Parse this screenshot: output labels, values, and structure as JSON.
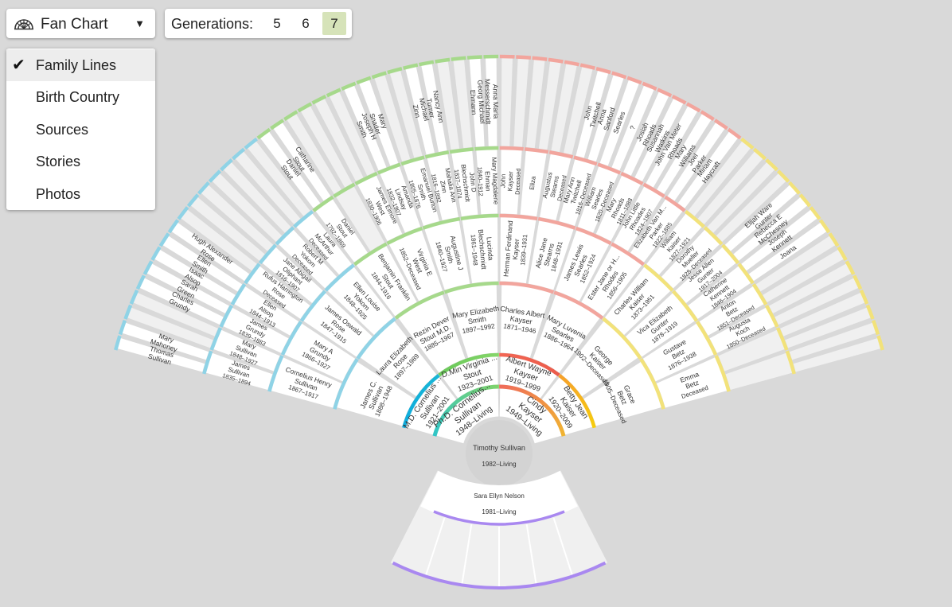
{
  "toolbar": {
    "chart_type_label": "Fan Chart",
    "generations_label": "Generations:",
    "generation_options": [
      "5",
      "6",
      "7"
    ],
    "active_generation": "7"
  },
  "view_menu": {
    "items": [
      "Family Lines",
      "Birth Country",
      "Sources",
      "Stories",
      "Photos"
    ],
    "selected": "Family Lines"
  },
  "colors": {
    "paternal_paternal": "#a6d98b",
    "paternal_maternal": "#8fd3e6",
    "maternal_paternal": "#f2a59d",
    "maternal_maternal": "#f2e27a",
    "spouse": "#a988f0",
    "empty": "#f0f0f0",
    "box": "#ffffff",
    "root": "#d3d3d3"
  },
  "root_person": {
    "name": "Timothy Sullivan",
    "dates": "1982–Living"
  },
  "spouse_person": {
    "name": "Sara Ellyn Nelson",
    "dates": "1981–Living"
  },
  "people": [
    {
      "name": "Ph.D. Cornelius...\nSullivan",
      "dates": "1948–Living",
      "ring": 1,
      "slot": 0
    },
    {
      "name": "Cindy\nKayser",
      "dates": "1949–Living",
      "ring": 1,
      "slot": 1
    },
    {
      "name": "M.D. Cornelius ...\nSullivan",
      "dates": "1921–2001",
      "ring": 2,
      "slot": 0
    },
    {
      "name": "D.Min Virginia ...\nStout",
      "dates": "1923–2001",
      "ring": 2,
      "slot": 1
    },
    {
      "name": "Albert Wayne\nKayser",
      "dates": "1919–1999",
      "ring": 2,
      "slot": 2
    },
    {
      "name": "Betty Jean\nKaiser",
      "dates": "1920–2009",
      "ring": 2,
      "slot": 3
    },
    {
      "name": "James C.\nSullivan",
      "dates": "1888–1948",
      "ring": 3,
      "slot": 0
    },
    {
      "name": "Laura Elizabeth\nRose",
      "dates": "1897–1989",
      "ring": 3,
      "slot": 1
    },
    {
      "name": "Rezin Dever\nStout M.D.",
      "dates": "1885–1967",
      "ring": 3,
      "slot": 2
    },
    {
      "name": "Mary Elizabeth\nSmith",
      "dates": "1897–1992",
      "ring": 3,
      "slot": 3
    },
    {
      "name": "Charles Albert\nKayser",
      "dates": "1871–1946",
      "ring": 3,
      "slot": 4
    },
    {
      "name": "Mary Luvenia\nSearles",
      "dates": "1886–1964",
      "ring": 3,
      "slot": 5
    },
    {
      "name": "George\nKaiser",
      "dates": "1902–Deceased",
      "ring": 3,
      "slot": 6
    },
    {
      "name": "Grace\nBetz",
      "dates": "1905–Deceased",
      "ring": 3,
      "slot": 7
    },
    {
      "name": "Cornelius Henry\nSullivan",
      "dates": "1867–1917",
      "ring": 4,
      "slot": 0
    },
    {
      "name": "Mary A\nGrundy",
      "dates": "1866–1927",
      "ring": 4,
      "slot": 1
    },
    {
      "name": "James Oswald\nRose",
      "dates": "1847–1915",
      "ring": 4,
      "slot": 2
    },
    {
      "name": "Ellen Louise\nYokom",
      "dates": "1848–1925",
      "ring": 4,
      "slot": 3
    },
    {
      "name": "Benjamin Franklin\nStout",
      "dates": "1844–1916",
      "ring": 4,
      "slot": 4
    },
    {
      "name": "Virginia E\nWest",
      "dates": "1852–Deceased",
      "ring": 4,
      "slot": 5
    },
    {
      "name": "Augustine J\nSmith",
      "dates": "1840–1927",
      "ring": 4,
      "slot": 6
    },
    {
      "name": "Lucinda\nBlechschmidt",
      "dates": "1861–1948",
      "ring": 4,
      "slot": 7
    },
    {
      "name": "Herman Ferdinand\nKayser",
      "dates": "1839–1931",
      "ring": 4,
      "slot": 8
    },
    {
      "name": "Alice Jane\nStearns",
      "dates": "1848–1931",
      "ring": 4,
      "slot": 9
    },
    {
      "name": "James Lewis\nSearles",
      "dates": "1852–1924",
      "ring": 4,
      "slot": 10
    },
    {
      "name": "Ester Jane or H...\nRhodes",
      "dates": "1856–1905",
      "ring": 4,
      "slot": 11
    },
    {
      "name": "Charles William\nKaiser",
      "dates": "1873–1951",
      "ring": 4,
      "slot": 12
    },
    {
      "name": "Vica Elizabeth\nGunter",
      "dates": "1878–1919",
      "ring": 4,
      "slot": 13
    },
    {
      "name": "Gustave\nBetz",
      "dates": "1876–1938",
      "ring": 4,
      "slot": 14
    },
    {
      "name": "Emma\nBetz",
      "dates": "Deceased",
      "ring": 4,
      "slot": 15
    },
    {
      "name": "James\nSullivan",
      "dates": "1835–1894",
      "ring": 5,
      "slot": 0
    },
    {
      "name": "Mary\nSullivan",
      "dates": "1848–1927",
      "ring": 5,
      "slot": 1
    },
    {
      "name": "James\nGrundy",
      "dates": "1839–1883",
      "ring": 5,
      "slot": 2
    },
    {
      "name": "Ellen\nAlsop",
      "dates": "1844–1913",
      "ring": 5,
      "slot": 3
    },
    {
      "name": "Rufus Harrington\nRose",
      "dates": "Deceased",
      "ring": 5,
      "slot": 4
    },
    {
      "name": "Jane Abigail\nOliphant",
      "dates": "1816–1907",
      "ring": 5,
      "slot": 5
    },
    {
      "name": "Robert M\nYokom",
      "dates": "Deceased",
      "ring": 5,
      "slot": 6
    },
    {
      "name": "Laura\nMcArthur",
      "dates": "Deceased",
      "ring": 5,
      "slot": 7
    },
    {
      "name": "Daniel\nStout",
      "dates": "1792–1869",
      "ring": 5,
      "slot": 8
    },
    {
      "name": "James Elmore\nWest",
      "dates": "1830–1906",
      "ring": 5,
      "slot": 10
    },
    {
      "name": "Amanda\nLindsay",
      "dates": "1832–1907",
      "ring": 5,
      "slot": 11
    },
    {
      "name": "Emanuel Burton\nSmith",
      "dates": "1805–1876",
      "ring": 5,
      "slot": 12
    },
    {
      "name": "Mahalia Ann\nZinn",
      "dates": "1816–1892",
      "ring": 5,
      "slot": 13
    },
    {
      "name": "John D\nBlechschmidt",
      "dates": "1837–1874",
      "ring": 5,
      "slot": 14
    },
    {
      "name": "Mary Magdalene\nEhman",
      "dates": "1840–1912",
      "ring": 5,
      "slot": 15
    },
    {
      "name": "John\nKayser",
      "dates": "Deceased",
      "ring": 5,
      "slot": 16
    },
    {
      "name": "Eliza",
      "dates": "",
      "ring": 5,
      "slot": 17
    },
    {
      "name": "Augustus\nStearns",
      "dates": "Deceased",
      "ring": 5,
      "slot": 18
    },
    {
      "name": "Mary Ann\nTwitchell",
      "dates": "1816–Deceased",
      "ring": 5,
      "slot": 19
    },
    {
      "name": "William\nSearles",
      "dates": "1820–Deceased",
      "ring": 5,
      "slot": 20
    },
    {
      "name": "Mary\nRhoads",
      "dates": "1811–1888",
      "ring": 5,
      "slot": 21
    },
    {
      "name": "John Little\nRhoades",
      "dates": "1824–1907",
      "ring": 5,
      "slot": 22
    },
    {
      "name": "Elizabeth Van M...\nParker",
      "dates": "1822–1885",
      "ring": 5,
      "slot": 23
    },
    {
      "name": "William\nKaiser",
      "dates": "1827–1921",
      "ring": 5,
      "slot": 24
    },
    {
      "name": "Dorothy\nMueller",
      "dates": "1828–Deceased",
      "ring": 5,
      "slot": 25
    },
    {
      "name": "Jesse Allen\nGunter",
      "dates": "1917–2004",
      "ring": 5,
      "slot": 26
    },
    {
      "name": "Catherine\nKennett",
      "dates": "1846–1904",
      "ring": 5,
      "slot": 27
    },
    {
      "name": "Anton\nBetz",
      "dates": "1851–Deceased",
      "ring": 5,
      "slot": 28
    },
    {
      "name": "Augusta\nKoch",
      "dates": "1850–Deceased",
      "ring": 5,
      "slot": 29
    },
    {
      "name": "Thomas\nSullivan",
      "dates": "",
      "ring": 6,
      "slot": 0
    },
    {
      "name": "Mary\nMahoney",
      "dates": "",
      "ring": 6,
      "slot": 1
    },
    {
      "name": "Charles\nGrundy",
      "dates": "",
      "ring": 6,
      "slot": 4
    },
    {
      "name": "Sarah\nGreen",
      "dates": "",
      "ring": 6,
      "slot": 5
    },
    {
      "name": "Isaac\nAlsop",
      "dates": "",
      "ring": 6,
      "slot": 6
    },
    {
      "name": "Ellen\nSmith",
      "dates": "",
      "ring": 6,
      "slot": 7
    },
    {
      "name": "Hugh Alexander\nRose",
      "dates": "",
      "ring": 6,
      "slot": 8
    },
    {
      "name": "Daniel\nStout",
      "dates": "",
      "ring": 6,
      "slot": 16
    },
    {
      "name": "Catharine\nStout",
      "dates": "",
      "ring": 6,
      "slot": 17
    },
    {
      "name": "Joseph H\nSmith",
      "dates": "",
      "ring": 6,
      "slot": 22
    },
    {
      "name": "Mary\nSnader",
      "dates": "",
      "ring": 6,
      "slot": 23
    },
    {
      "name": "Michael\nZinn",
      "dates": "",
      "ring": 6,
      "slot": 26
    },
    {
      "name": "Nancy Ann\nTurner",
      "dates": "",
      "ring": 6,
      "slot": 27
    },
    {
      "name": "Georg Michael\nEhmann",
      "dates": "",
      "ring": 6,
      "slot": 30
    },
    {
      "name": "Anna Maria\nMesserschmidt",
      "dates": "",
      "ring": 6,
      "slot": 31
    },
    {
      "name": "John\nTwitchell",
      "dates": "",
      "ring": 6,
      "slot": 38
    },
    {
      "name": "Anna\nSanford",
      "dates": "",
      "ring": 6,
      "slot": 39
    },
    {
      "name": "Searles",
      "dates": "",
      "ring": 6,
      "slot": 40
    },
    {
      "name": "?",
      "dates": "",
      "ring": 6,
      "slot": 41
    },
    {
      "name": "Josiah\nRhoads",
      "dates": "",
      "ring": 6,
      "slot": 42
    },
    {
      "name": "Susannah\nWatkins",
      "dates": "",
      "ring": 6,
      "slot": 43
    },
    {
      "name": "John Van Meter\nRhoads",
      "dates": "",
      "ring": 6,
      "slot": 44
    },
    {
      "name": "Mary\nWilliams",
      "dates": "",
      "ring": 6,
      "slot": 45
    },
    {
      "name": "Joel\nParker",
      "dates": "",
      "ring": 6,
      "slot": 46
    },
    {
      "name": "Miriam\nHaycraft",
      "dates": "",
      "ring": 6,
      "slot": 47
    },
    {
      "name": "Elijah Ware\nGunter",
      "dates": "",
      "ring": 6,
      "slot": 52
    },
    {
      "name": "Rebecca E\nMcChesney",
      "dates": "",
      "ring": 6,
      "slot": 53
    },
    {
      "name": "Joseph\nKennett",
      "dates": "",
      "ring": 6,
      "slot": 54
    },
    {
      "name": "Joana",
      "dates": "",
      "ring": 6,
      "slot": 55
    }
  ]
}
